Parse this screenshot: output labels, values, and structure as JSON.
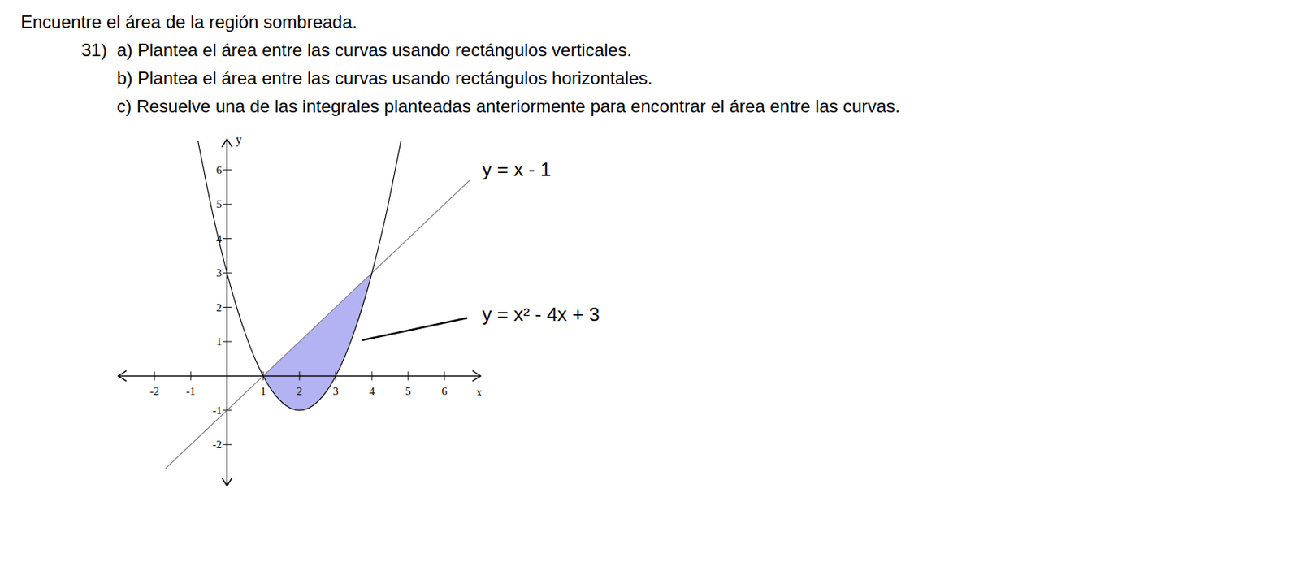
{
  "title": "Encuentre el área de la región sombreada.",
  "problem": {
    "number": "31)",
    "items": [
      "a) Plantea el área entre las curvas usando rectángulos verticales.",
      "b) Plantea el área entre las curvas usando rectángulos horizontales.",
      "c) Resuelve una de las integrales planteadas anteriormente para encontrar el área entre las curvas."
    ]
  },
  "chart_data": {
    "type": "line",
    "xlabel": "x",
    "ylabel": "y",
    "xlim": [
      -3,
      7
    ],
    "ylim": [
      -3.2,
      6.9
    ],
    "xticks": [
      -2,
      -1,
      1,
      2,
      3,
      4,
      5,
      6
    ],
    "yticks": [
      -2,
      -1,
      1,
      2,
      3,
      4,
      5,
      6
    ],
    "series": [
      {
        "name": "y = x - 1",
        "color": "#808080",
        "x": [
          -1.7,
          6.7
        ],
        "values": [
          -2.7,
          5.7
        ]
      },
      {
        "name": "y = x² - 4x + 3",
        "color": "#000000",
        "x": [
          -0.8,
          -0.5,
          -0.25,
          0,
          0.25,
          0.5,
          0.75,
          1,
          1.25,
          1.5,
          1.75,
          2,
          2.25,
          2.5,
          2.75,
          3,
          3.25,
          3.5,
          3.75,
          4,
          4.25,
          4.5,
          4.8
        ],
        "values": [
          6.84,
          5.25,
          4.06,
          3,
          2.06,
          1.25,
          0.56,
          0,
          -0.44,
          -0.75,
          -0.94,
          -1,
          -0.94,
          -0.75,
          -0.44,
          0,
          0.56,
          1.25,
          2.06,
          3,
          4.06,
          5.25,
          6.84
        ]
      }
    ],
    "shaded": {
      "color": "#a6a6f2",
      "x": [
        1,
        1.25,
        1.5,
        1.75,
        2,
        2.25,
        2.5,
        2.75,
        3,
        3.25,
        3.5,
        3.75,
        4
      ],
      "lower": [
        0,
        -0.44,
        -0.75,
        -0.94,
        -1,
        -0.94,
        -0.75,
        -0.44,
        0,
        0.56,
        1.25,
        2.06,
        3
      ],
      "upper": [
        0,
        0.25,
        0.5,
        0.75,
        1,
        1.25,
        1.5,
        1.75,
        2,
        2.25,
        2.5,
        2.75,
        3
      ]
    }
  }
}
